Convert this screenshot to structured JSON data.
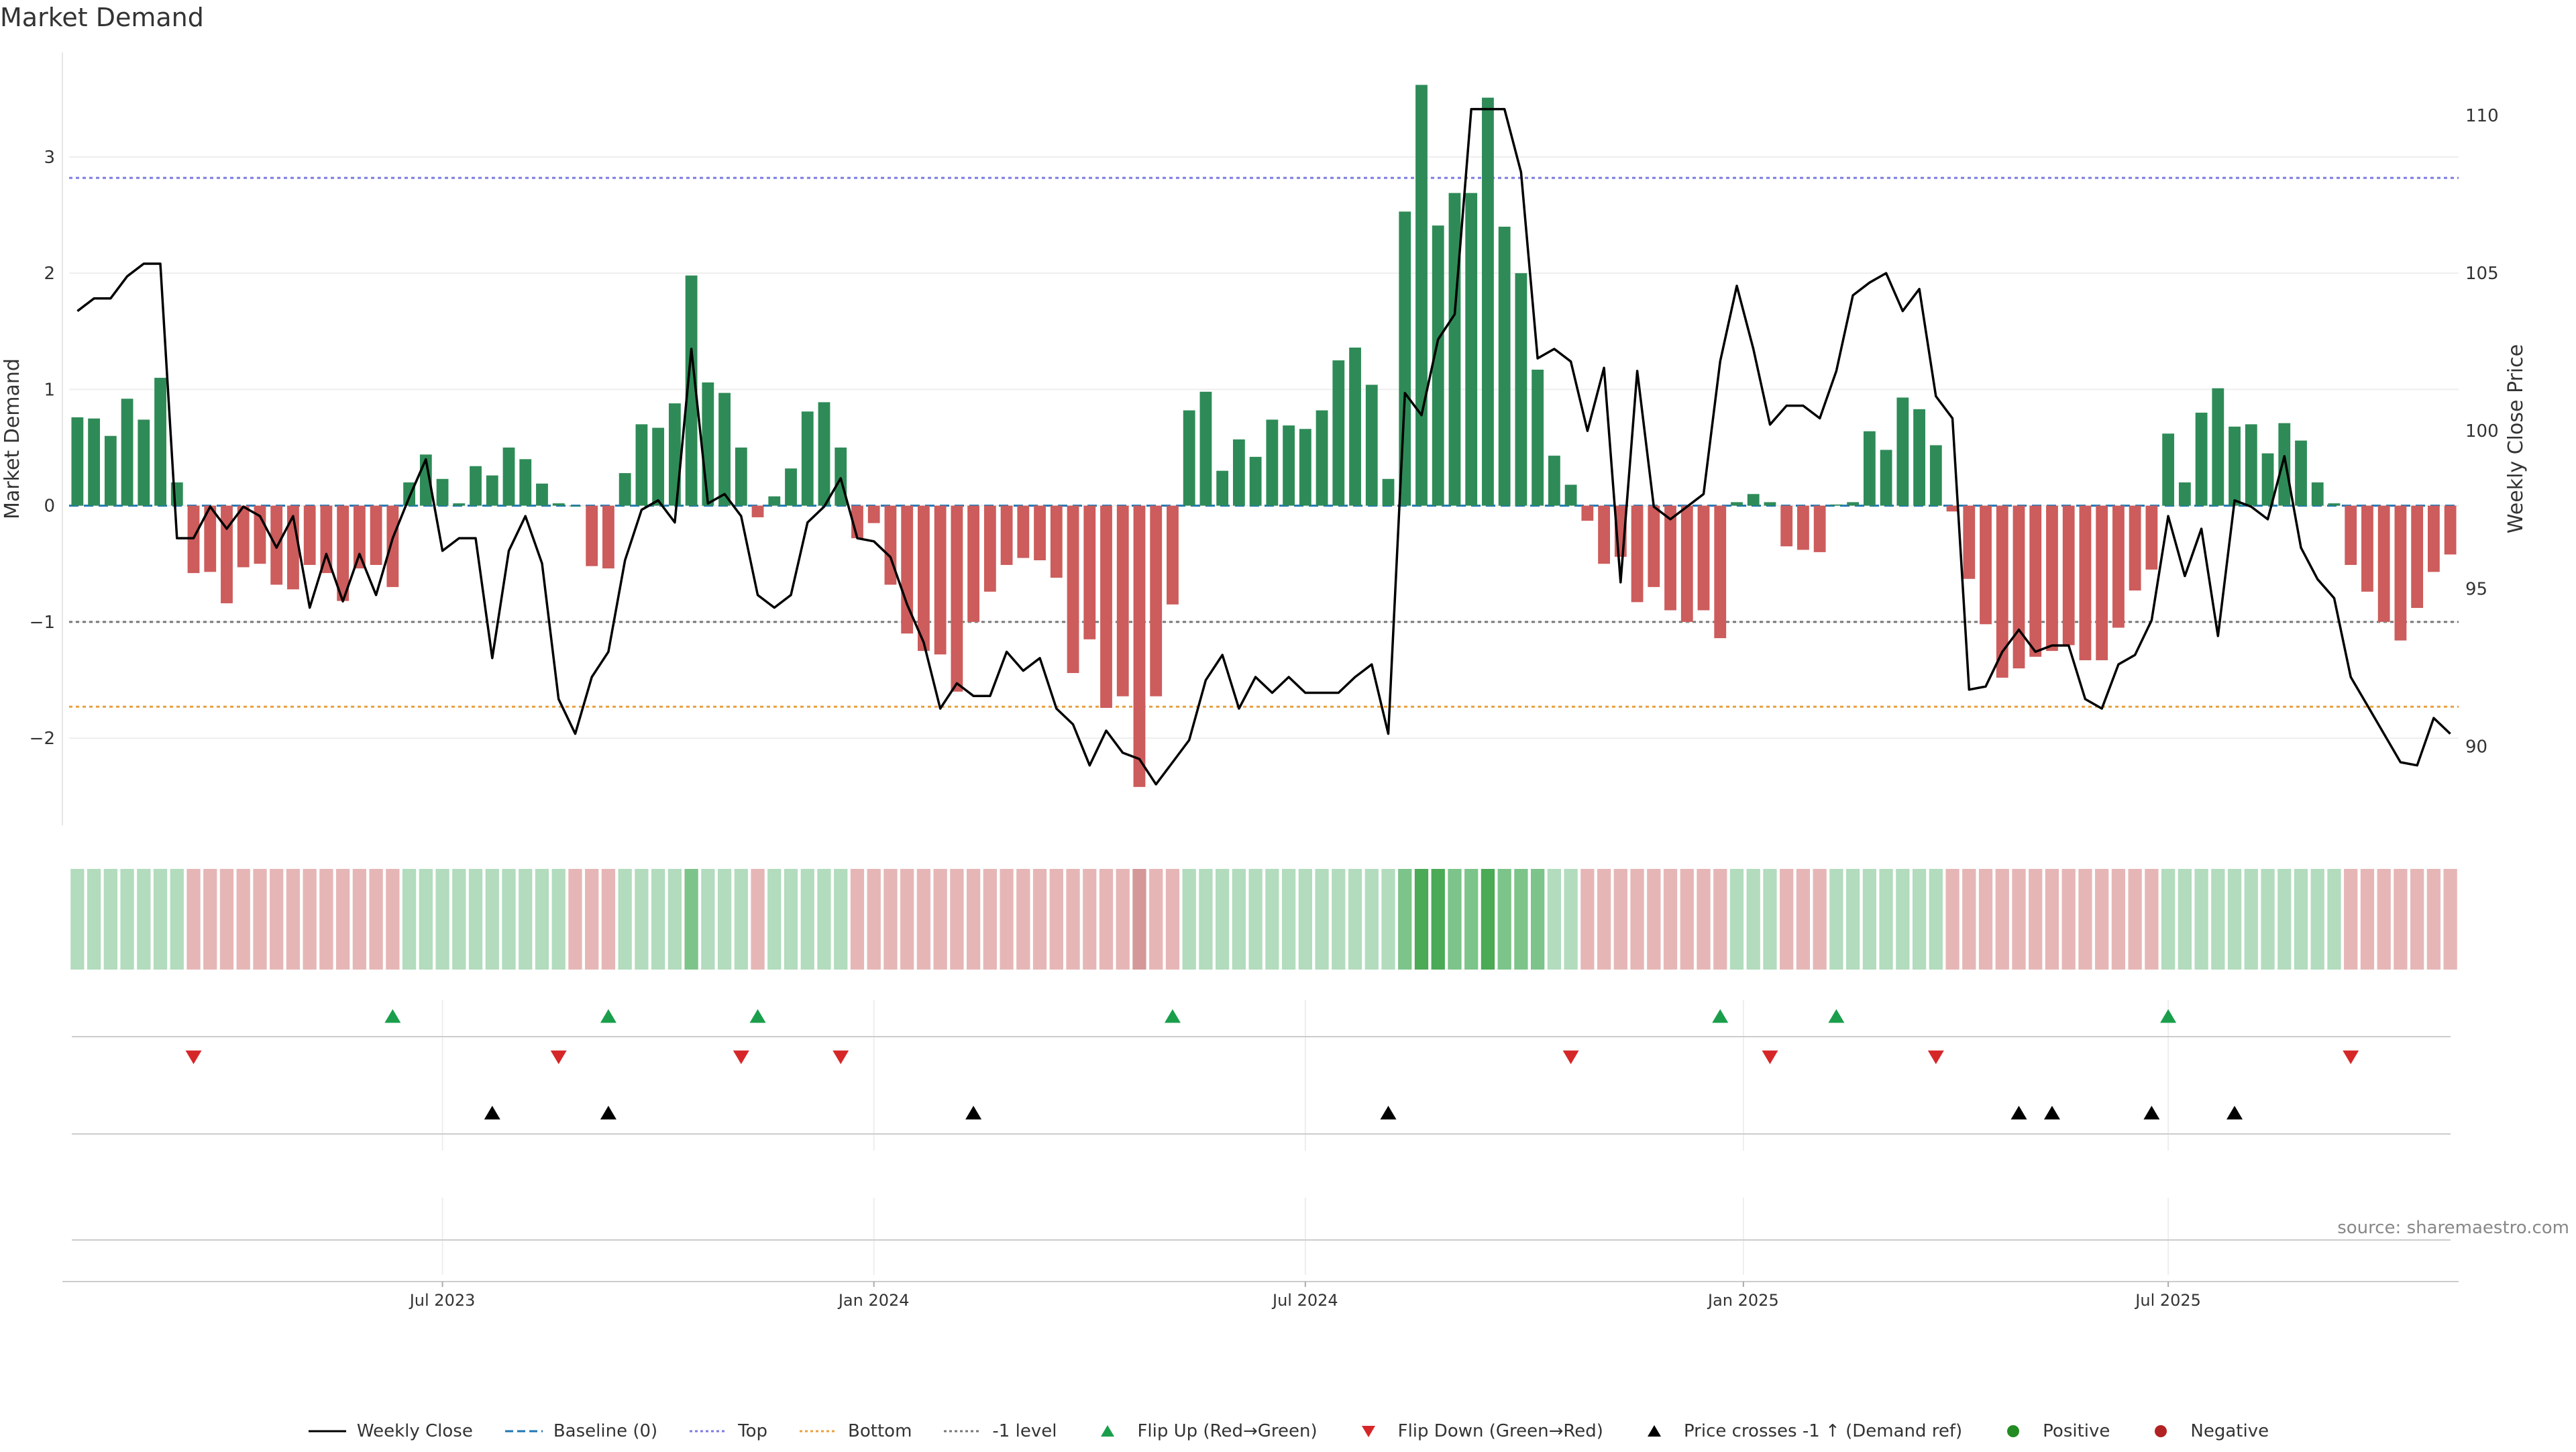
{
  "title": "Market Demand",
  "source": "source: sharemaestro.com",
  "colors": {
    "positive": "#2e8b57",
    "negative": "#cd5c5c",
    "line": "#000000",
    "top": "#7b7be0",
    "bottom": "#e8a040",
    "minus_one": "#777777",
    "baseline": "#1f77b4",
    "flip_up": "#1a9e4b",
    "flip_down": "#d62728",
    "cross": "#000000",
    "pos_dot": "#228b22",
    "neg_dot": "#b22222",
    "grid": "#eeeeee"
  },
  "legend": [
    {
      "label": "Weekly Close",
      "icon": "line-solid-black"
    },
    {
      "label": "Baseline (0)",
      "icon": "line-dashed-blue"
    },
    {
      "label": "Top",
      "icon": "line-dotted-purple"
    },
    {
      "label": "Bottom",
      "icon": "line-dotted-orange"
    },
    {
      "label": "-1 level",
      "icon": "line-dotted-gray"
    },
    {
      "label": "Flip Up (Red→Green)",
      "icon": "triangle-up-green"
    },
    {
      "label": "Flip Down (Green→Red)",
      "icon": "triangle-down-red"
    },
    {
      "label": "Price crosses -1 ↑ (Demand ref)",
      "icon": "triangle-up-black"
    },
    {
      "label": "Positive",
      "icon": "dot-green"
    },
    {
      "label": "Negative",
      "icon": "dot-red"
    }
  ],
  "chart_data": {
    "type": "bar",
    "title": "Market Demand",
    "ylabel": "Market Demand",
    "y2label": "Weekly Close Price",
    "ylim": [
      -2.75,
      3.9
    ],
    "y2lim": [
      87.5,
      112
    ],
    "yticks": [
      -2,
      -1,
      0,
      1,
      2,
      3
    ],
    "y2ticks": [
      90,
      95,
      100,
      105,
      110
    ],
    "levels": {
      "top": 2.82,
      "bottom": -1.73,
      "minus_one": -1,
      "baseline": 0
    },
    "x_start": "2023-01-20",
    "x_step_days": 7,
    "xticks": [
      {
        "label": "Jul 2023",
        "index": 22
      },
      {
        "label": "Jan 2024",
        "index": 48
      },
      {
        "label": "Jul 2024",
        "index": 74
      },
      {
        "label": "Jan 2025",
        "index": 100.4
      },
      {
        "label": "Jul 2025",
        "index": 126
      }
    ],
    "demand": [
      0.76,
      0.75,
      0.6,
      0.92,
      0.74,
      1.1,
      0.2,
      -0.58,
      -0.57,
      -0.84,
      -0.53,
      -0.5,
      -0.68,
      -0.72,
      -0.51,
      -0.58,
      -0.82,
      -0.54,
      -0.51,
      -0.7,
      0.2,
      0.44,
      0.23,
      0.02,
      0.34,
      0.26,
      0.5,
      0.4,
      0.19,
      0.02,
      0.0,
      -0.52,
      -0.54,
      0.28,
      0.7,
      0.67,
      0.88,
      1.98,
      1.06,
      0.97,
      0.5,
      -0.1,
      0.08,
      0.32,
      0.81,
      0.89,
      0.5,
      -0.28,
      -0.15,
      -0.68,
      -1.1,
      -1.25,
      -1.28,
      -1.6,
      -1.0,
      -0.74,
      -0.51,
      -0.45,
      -0.47,
      -0.62,
      -1.44,
      -1.15,
      -1.74,
      -1.64,
      -2.42,
      -1.64,
      -0.85,
      0.82,
      0.98,
      0.3,
      0.57,
      0.42,
      0.74,
      0.69,
      0.66,
      0.82,
      1.25,
      1.36,
      1.04,
      0.23,
      2.53,
      3.62,
      2.41,
      2.69,
      2.69,
      3.51,
      2.4,
      2.0,
      1.17,
      0.43,
      0.18,
      -0.13,
      -0.5,
      -0.44,
      -0.83,
      -0.7,
      -0.9,
      -1.0,
      -0.9,
      -1.14,
      0.03,
      0.1,
      0.03,
      -0.35,
      -0.38,
      -0.4,
      0.01,
      0.03,
      0.64,
      0.48,
      0.93,
      0.83,
      0.52,
      -0.05,
      -0.63,
      -1.02,
      -1.48,
      -1.4,
      -1.3,
      -1.25,
      -1.2,
      -1.33,
      -1.33,
      -1.05,
      -0.73,
      -0.55,
      0.62,
      0.2,
      0.8,
      1.01,
      0.68,
      0.7,
      0.45,
      0.71,
      0.56,
      0.2,
      0.02,
      -0.51,
      -0.74,
      -1.0,
      -1.16,
      -0.88,
      -0.57,
      -0.42
    ],
    "weekly_close": [
      103.8,
      104.2,
      104.2,
      104.9,
      105.3,
      105.3,
      96.6,
      96.6,
      97.6,
      96.9,
      97.6,
      97.3,
      96.3,
      97.3,
      94.4,
      96.1,
      94.6,
      96.1,
      94.8,
      96.6,
      97.9,
      99.1,
      96.2,
      96.6,
      96.6,
      92.8,
      96.2,
      97.3,
      95.8,
      91.5,
      90.4,
      92.2,
      93.0,
      95.9,
      97.5,
      97.8,
      97.1,
      102.6,
      97.7,
      98.0,
      97.3,
      94.8,
      94.4,
      94.8,
      97.1,
      97.6,
      98.5,
      96.6,
      96.5,
      96.0,
      94.5,
      93.3,
      91.2,
      92.0,
      91.6,
      91.6,
      93.0,
      92.4,
      92.8,
      91.2,
      90.7,
      89.4,
      90.5,
      89.8,
      89.6,
      88.8,
      89.5,
      90.2,
      92.1,
      92.9,
      91.2,
      92.2,
      91.7,
      92.2,
      91.7,
      91.7,
      91.7,
      92.2,
      92.6,
      90.4,
      101.2,
      100.5,
      102.9,
      103.7,
      110.2,
      110.2,
      110.2,
      108.2,
      102.3,
      102.6,
      102.2,
      100.0,
      102.0,
      95.2,
      101.9,
      97.6,
      97.2,
      97.6,
      98.0,
      102.2,
      104.6,
      102.6,
      100.2,
      100.8,
      100.8,
      100.4,
      101.9,
      104.3,
      104.7,
      105.0,
      103.8,
      104.5,
      101.1,
      100.4,
      91.8,
      91.9,
      93.0,
      93.7,
      93.0,
      93.2,
      93.2,
      91.5,
      91.2,
      92.6,
      92.9,
      94.0,
      97.3,
      95.4,
      96.9,
      93.5,
      97.8,
      97.6,
      97.2,
      99.2,
      96.3,
      95.3,
      94.7,
      92.2,
      91.3,
      90.4,
      89.5,
      89.4,
      90.9,
      90.4
    ],
    "heat": [
      1,
      1,
      1,
      1,
      1,
      1,
      1,
      -1,
      -1,
      -1,
      -1,
      -1,
      -1,
      -1,
      -1,
      -1,
      -1,
      -1,
      -1,
      -1,
      1,
      1,
      1,
      1,
      1,
      1,
      1,
      1,
      1,
      1,
      -1,
      -1,
      -1,
      1,
      1,
      1,
      1,
      2,
      1,
      1,
      1,
      -1,
      1,
      1,
      1,
      1,
      1,
      -1,
      -1,
      -1,
      -1,
      -1,
      -1,
      -1,
      -1,
      -1,
      -1,
      -1,
      -1,
      -1,
      -1,
      -1,
      -1,
      -1,
      -2,
      -1,
      -1,
      1,
      1,
      1,
      1,
      1,
      1,
      1,
      1,
      1,
      1,
      1,
      1,
      1,
      2,
      3,
      3,
      2,
      2,
      3,
      2,
      2,
      2,
      1,
      1,
      -1,
      -1,
      -1,
      -1,
      -1,
      -1,
      -1,
      -1,
      -1,
      1,
      1,
      1,
      -1,
      -1,
      -1,
      1,
      1,
      1,
      1,
      1,
      1,
      1,
      -1,
      -1,
      -1,
      -1,
      -1,
      -1,
      -1,
      -1,
      -1,
      -1,
      -1,
      -1,
      -1,
      1,
      1,
      1,
      1,
      1,
      1,
      1,
      1,
      1,
      1,
      1,
      -1,
      -1,
      -1,
      -1,
      -1,
      -1,
      -1
    ],
    "flip_up_indices": [
      19,
      32,
      41,
      66,
      99,
      106,
      126
    ],
    "flip_down_indices": [
      7,
      29,
      40,
      46,
      90,
      102,
      112,
      137
    ],
    "price_cross_indices": [
      25,
      32,
      54,
      79,
      117,
      119,
      125,
      130
    ]
  }
}
